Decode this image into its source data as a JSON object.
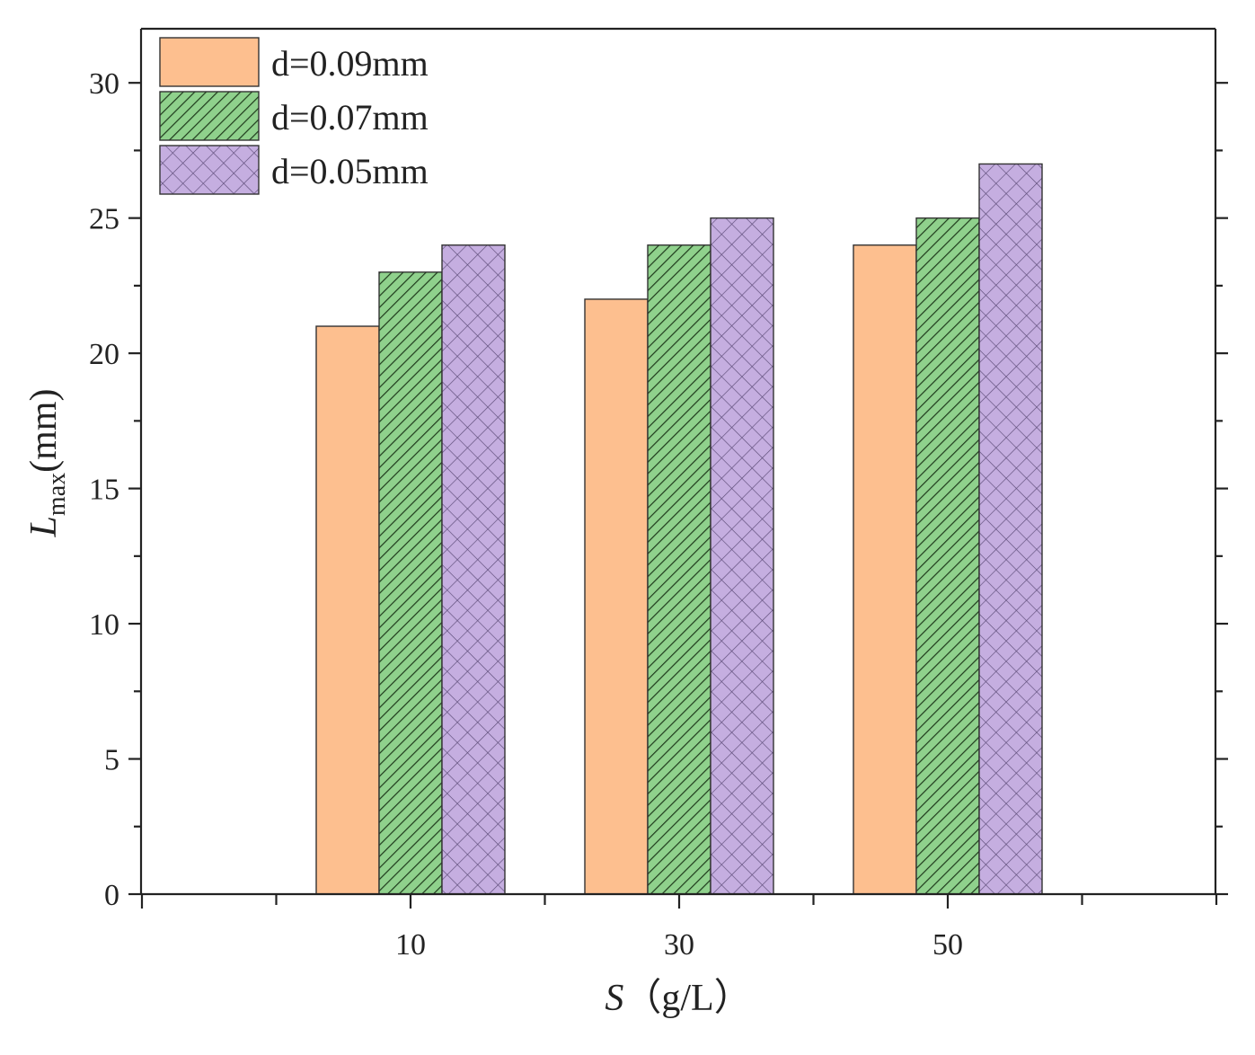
{
  "chart_data": {
    "type": "bar",
    "categories": [
      "10",
      "30",
      "50"
    ],
    "series": [
      {
        "name": "d=0.09mm",
        "values": [
          21,
          22,
          24
        ],
        "color": "#fdbf8f",
        "pattern": "solid"
      },
      {
        "name": "d=0.07mm",
        "values": [
          23,
          24,
          25
        ],
        "color": "#8fd18c",
        "pattern": "diagonal"
      },
      {
        "name": "d=0.05mm",
        "values": [
          24,
          25,
          27
        ],
        "color": "#c5aee0",
        "pattern": "crosshatch"
      }
    ],
    "title": "",
    "xlabel": {
      "symbol": "S",
      "unit": "（g/L）"
    },
    "ylabel": {
      "symbol": "L",
      "subscript": "max",
      "unit": "(mm)"
    },
    "ylim": [
      0,
      32
    ],
    "yticks": [
      0,
      5,
      10,
      15,
      20,
      25,
      30
    ],
    "grid": false,
    "legend": "top-left"
  }
}
